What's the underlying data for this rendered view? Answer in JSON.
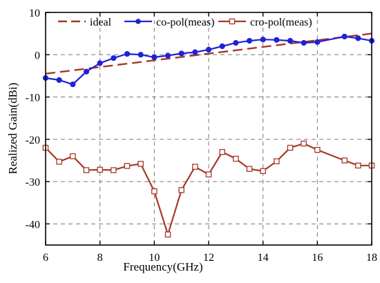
{
  "chart_data": {
    "type": "line",
    "xlabel": "Frequency(GHz)",
    "ylabel": "Realized Gain(dBi)",
    "xlim": [
      6,
      18
    ],
    "ylim": [
      -45,
      10
    ],
    "xticks": [
      6,
      8,
      10,
      12,
      14,
      16,
      18
    ],
    "yticks": [
      10,
      0,
      -10,
      -20,
      -30,
      -40
    ],
    "grid": true,
    "legend_position": "top",
    "series": [
      {
        "name": "ideal",
        "style": "dashed",
        "marker": "none",
        "color": "#a5372a",
        "x": [
          6,
          18
        ],
        "y": [
          -4.5,
          5.0
        ]
      },
      {
        "name": "co-pol(meas)",
        "style": "solid",
        "marker": "filled-circle",
        "color": "#1f22d6",
        "x": [
          6.0,
          6.5,
          7.0,
          7.5,
          8.0,
          8.5,
          9.0,
          9.5,
          10.0,
          10.5,
          11.0,
          11.5,
          12.0,
          12.5,
          13.0,
          13.5,
          14.0,
          14.5,
          15.0,
          15.5,
          16.0,
          17.0,
          17.5,
          18.0
        ],
        "y": [
          -5.5,
          -6.0,
          -7.0,
          -4.0,
          -2.0,
          -0.8,
          0.2,
          0.0,
          -0.6,
          -0.2,
          0.3,
          0.6,
          1.2,
          2.0,
          2.8,
          3.3,
          3.6,
          3.5,
          3.3,
          2.8,
          3.0,
          4.3,
          3.9,
          3.3
        ]
      },
      {
        "name": "cro-pol(meas)",
        "style": "solid",
        "marker": "open-square",
        "color": "#a5372a",
        "x": [
          6.0,
          6.5,
          7.0,
          7.5,
          8.0,
          8.5,
          9.0,
          9.5,
          10.0,
          10.5,
          11.0,
          11.5,
          12.0,
          12.5,
          13.0,
          13.5,
          14.0,
          14.5,
          15.0,
          15.5,
          16.0,
          17.0,
          17.5,
          18.0
        ],
        "y": [
          -22.0,
          -25.3,
          -24.0,
          -27.3,
          -27.2,
          -27.3,
          -26.3,
          -25.8,
          -32.3,
          -42.5,
          -32.0,
          -26.5,
          -28.3,
          -23.0,
          -24.6,
          -27.0,
          -27.5,
          -25.2,
          -22.0,
          -21.0,
          -22.5,
          -25.0,
          -26.2,
          -26.2
        ]
      }
    ]
  }
}
